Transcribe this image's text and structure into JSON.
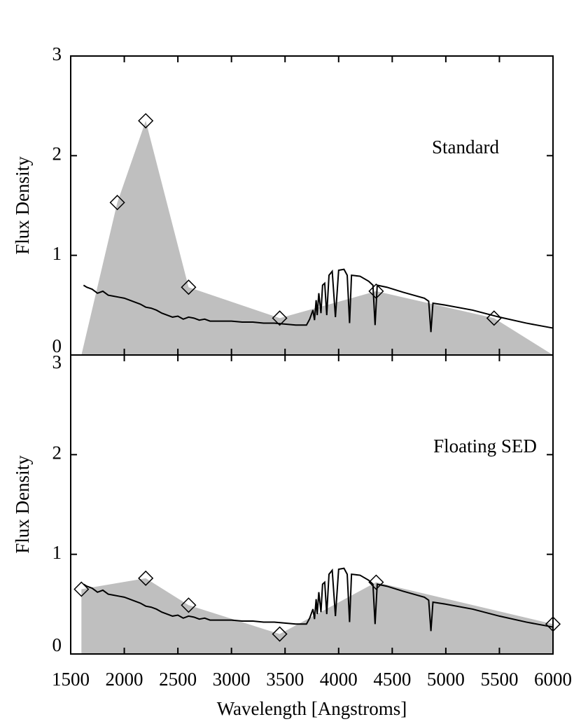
{
  "chart_data": [
    {
      "type": "line",
      "ylabel": "Flux Density",
      "label": "Standard",
      "xlim": [
        1500,
        6000
      ],
      "ylim": [
        0,
        3
      ],
      "yticks": [
        0,
        1,
        2,
        3
      ],
      "spectrum": {
        "color": "#000000",
        "x": [
          1620,
          1650,
          1700,
          1750,
          1800,
          1850,
          1900,
          1950,
          2000,
          2050,
          2100,
          2150,
          2200,
          2250,
          2300,
          2350,
          2400,
          2450,
          2500,
          2550,
          2600,
          2650,
          2700,
          2750,
          2800,
          2900,
          3000,
          3100,
          3200,
          3300,
          3400,
          3500,
          3600,
          3700,
          3730,
          3760,
          3775,
          3790,
          3800,
          3815,
          3835,
          3850,
          3870,
          3889,
          3910,
          3940,
          3970,
          4000,
          4050,
          4080,
          4102,
          4120,
          4200,
          4280,
          4320,
          4340,
          4360,
          4450,
          4600,
          4800,
          4840,
          4861,
          4880,
          5000,
          5250,
          5500,
          5750,
          6000
        ],
        "values": [
          0.7,
          0.68,
          0.66,
          0.62,
          0.64,
          0.6,
          0.59,
          0.58,
          0.57,
          0.55,
          0.53,
          0.51,
          0.48,
          0.47,
          0.45,
          0.42,
          0.4,
          0.38,
          0.39,
          0.36,
          0.38,
          0.37,
          0.35,
          0.36,
          0.34,
          0.34,
          0.34,
          0.33,
          0.33,
          0.32,
          0.32,
          0.31,
          0.3,
          0.3,
          0.36,
          0.45,
          0.35,
          0.55,
          0.4,
          0.62,
          0.42,
          0.7,
          0.72,
          0.4,
          0.8,
          0.84,
          0.38,
          0.85,
          0.86,
          0.8,
          0.32,
          0.8,
          0.79,
          0.74,
          0.7,
          0.3,
          0.7,
          0.68,
          0.63,
          0.57,
          0.54,
          0.23,
          0.52,
          0.5,
          0.45,
          0.38,
          0.32,
          0.27
        ]
      },
      "model": {
        "color": "#bfbfbf",
        "x": [
          1600,
          1935,
          2200,
          2600,
          3450,
          4350,
          5450,
          6000
        ],
        "values": [
          0,
          1.53,
          2.35,
          0.68,
          0.37,
          0.64,
          0.37,
          0
        ]
      },
      "points": {
        "x": [
          1935,
          2200,
          2600,
          3450,
          4350,
          5450
        ],
        "values": [
          1.53,
          2.35,
          0.68,
          0.37,
          0.64,
          0.37
        ]
      }
    },
    {
      "type": "line",
      "ylabel": "Flux Density",
      "label": "Floating SED",
      "xlabel": "Wavelength [Angstroms]",
      "xlim": [
        1500,
        6000
      ],
      "ylim": [
        0,
        3
      ],
      "yticks": [
        0,
        1,
        2,
        3
      ],
      "xticks": [
        1500,
        2000,
        2500,
        3000,
        3500,
        4000,
        4500,
        5000,
        5500,
        6000
      ],
      "spectrum": {
        "color": "#000000",
        "x": [
          1620,
          1650,
          1700,
          1750,
          1800,
          1850,
          1900,
          1950,
          2000,
          2050,
          2100,
          2150,
          2200,
          2250,
          2300,
          2350,
          2400,
          2450,
          2500,
          2550,
          2600,
          2650,
          2700,
          2750,
          2800,
          2900,
          3000,
          3100,
          3200,
          3300,
          3400,
          3500,
          3600,
          3700,
          3730,
          3760,
          3775,
          3790,
          3800,
          3815,
          3835,
          3850,
          3870,
          3889,
          3910,
          3940,
          3970,
          4000,
          4050,
          4080,
          4102,
          4120,
          4200,
          4280,
          4320,
          4340,
          4360,
          4450,
          4600,
          4800,
          4840,
          4861,
          4880,
          5000,
          5250,
          5500,
          5750,
          6000
        ],
        "values": [
          0.7,
          0.68,
          0.66,
          0.62,
          0.64,
          0.6,
          0.59,
          0.58,
          0.57,
          0.55,
          0.53,
          0.51,
          0.48,
          0.47,
          0.45,
          0.42,
          0.4,
          0.38,
          0.39,
          0.36,
          0.38,
          0.37,
          0.35,
          0.36,
          0.34,
          0.34,
          0.34,
          0.33,
          0.33,
          0.32,
          0.32,
          0.31,
          0.3,
          0.3,
          0.36,
          0.45,
          0.35,
          0.55,
          0.4,
          0.62,
          0.42,
          0.7,
          0.72,
          0.4,
          0.8,
          0.84,
          0.38,
          0.85,
          0.86,
          0.8,
          0.32,
          0.8,
          0.79,
          0.74,
          0.7,
          0.3,
          0.7,
          0.68,
          0.63,
          0.57,
          0.54,
          0.23,
          0.52,
          0.5,
          0.45,
          0.38,
          0.32,
          0.27
        ]
      },
      "model": {
        "color": "#bfbfbf",
        "x": [
          1600,
          1600,
          2200,
          2600,
          3450,
          4350,
          6000,
          6000
        ],
        "values": [
          0,
          0.65,
          0.76,
          0.49,
          0.2,
          0.72,
          0.3,
          0
        ]
      },
      "points": {
        "x": [
          1600,
          2200,
          2600,
          3450,
          4350,
          6000
        ],
        "values": [
          0.65,
          0.76,
          0.49,
          0.2,
          0.72,
          0.3
        ]
      }
    }
  ]
}
